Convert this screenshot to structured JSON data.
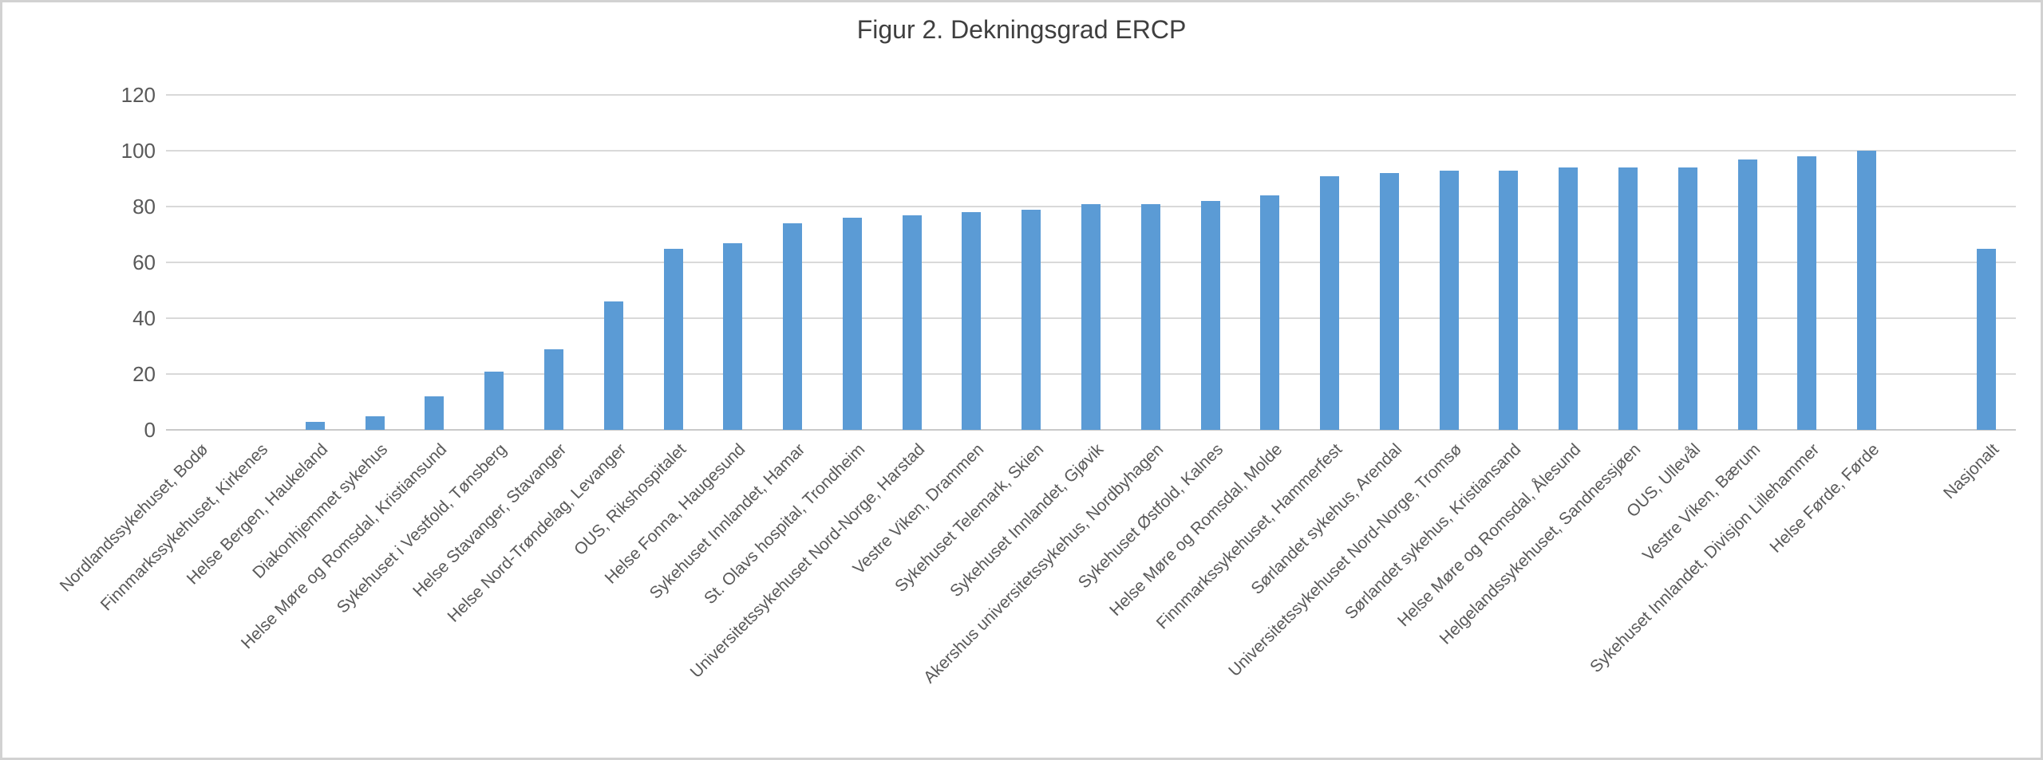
{
  "chart": {
    "title": "Figur 2. Dekningsgrad ERCP"
  },
  "chart_data": {
    "type": "bar",
    "title": "Figur 2. Dekningsgrad ERCP",
    "categories": [
      "Nordlandssykehuset, Bodø",
      "Finnmarkssykehuset, Kirkenes",
      "Helse Bergen, Haukeland",
      "Diakonhjemmet sykehus",
      "Helse Møre og Romsdal, Kristiansund",
      "Sykehuset i Vestfold, Tønsberg",
      "Helse Stavanger, Stavanger",
      "Helse Nord-Trøndelag, Levanger",
      "OUS, Rikshospitalet",
      "Helse Fonna, Haugesund",
      "Sykehuset Innlandet, Hamar",
      "St. Olavs hospital, Trondheim",
      "Universitetssykehuset Nord-Norge, Harstad",
      "Vestre Viken, Drammen",
      "Sykehuset Telemark, Skien",
      "Sykehuset Innlandet, Gjøvik",
      "Akershus universitetssykehus, Nordbyhagen",
      "Sykehuset Østfold, Kalnes",
      "Helse Møre og Romsdal, Molde",
      "Finnmarkssykehuset, Hammerfest",
      "Sørlandet sykehus, Arendal",
      "Universitetssykehuset Nord-Norge, Tromsø",
      "Sørlandet sykehus, Kristiansand",
      "Helse Møre og Romsdal, Ålesund",
      "Helgelandssykehuset, Sandnessjøen",
      "OUS, Ullevål",
      "Vestre Viken, Bærum",
      "Sykehuset Innlandet, Divisjon Lillehammer",
      "Helse Førde, Førde",
      "Nasjonalt"
    ],
    "values": [
      0,
      0,
      3,
      5,
      12,
      21,
      29,
      46,
      65,
      67,
      74,
      76,
      77,
      78,
      79,
      81,
      81,
      82,
      84,
      91,
      92,
      93,
      93,
      94,
      94,
      94,
      97,
      98,
      100,
      65
    ],
    "xlabel": "",
    "ylabel": "",
    "ylim": [
      0,
      120
    ],
    "ytick_step": 20,
    "grid": "horizontal",
    "legend": "none",
    "x_label_rotation_deg": 45,
    "gap_slot_before_index": 29,
    "bar_color": "#5b9bd5",
    "gridline_color": "#d9d9d9",
    "axis_line_color": "#c9c9c9",
    "text_color": "#595959",
    "title_color": "#3f3f3f"
  }
}
